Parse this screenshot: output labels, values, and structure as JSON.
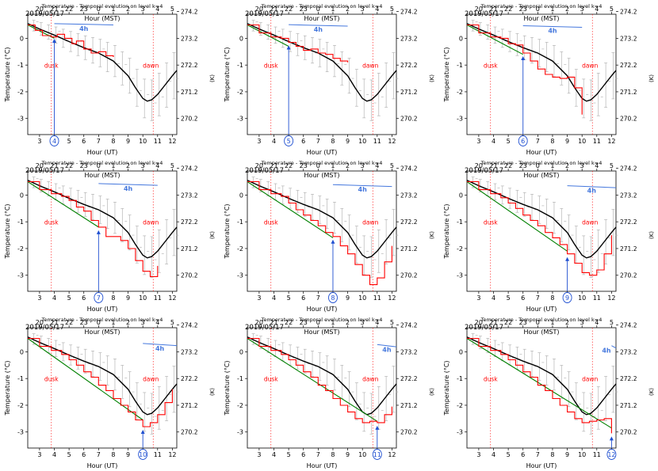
{
  "figure": {
    "panel_title": "Temperature - Temporal evolution on level k=4",
    "date_label": "2019/05/17",
    "xlabel_bottom": "Hour (UT)",
    "xlabel_top": "Hour (MST)",
    "ylabel_left": "Temperature (°C)",
    "ylabel_right": "(K)",
    "dusk_label": "dusk",
    "dawn_label": "dawn",
    "window_label": "4h",
    "colors": {
      "mean_line": "#000000",
      "observed_line": "#ff0000",
      "model_line": "#008000",
      "marker": "#1f4fd1",
      "window_bar": "#4477dd",
      "annotation": "#ff0000",
      "errorbar": "#aaaaaa"
    }
  },
  "chart_data": {
    "type": "line",
    "title": "Temperature - Temporal evolution on level k=4",
    "xlabel": "Hour (UT)",
    "ylabel": "Temperature (°C)",
    "secondary_xlabel": "Hour (MST)",
    "secondary_ylabel": "(K)",
    "xlim": [
      2.2,
      12.3
    ],
    "ylim": [
      -3.6,
      0.9
    ],
    "x_ticks": [
      "3",
      "4",
      "5",
      "6",
      "7",
      "8",
      "9",
      "10",
      "11",
      "12"
    ],
    "y_ticks": [
      "-3",
      "-2",
      "-1",
      "0"
    ],
    "top_ticks_x": [
      3,
      4,
      5,
      6,
      7,
      8,
      9,
      10,
      11,
      12
    ],
    "top_ticks": [
      "20",
      "21",
      "22",
      "23",
      "0",
      "1",
      "2",
      "3",
      "4",
      "5"
    ],
    "right_ticks": [
      "274.2",
      "273.2",
      "272.2",
      "271.2",
      "270.2"
    ],
    "right_ticks_y": [
      1,
      0,
      -1,
      -2,
      -3
    ],
    "dusk_x": 3.8,
    "dawn_x": 10.7,
    "mean_curve": {
      "x": [
        2.2,
        3,
        4,
        5,
        6,
        7,
        8,
        9,
        9.5,
        10,
        10.3,
        10.6,
        11,
        11.5,
        12,
        12.3
      ],
      "y": [
        0.55,
        0.35,
        0.12,
        -0.12,
        -0.35,
        -0.55,
        -0.85,
        -1.4,
        -1.85,
        -2.25,
        -2.35,
        -2.3,
        -2.1,
        -1.75,
        -1.4,
        -1.2
      ]
    },
    "errorbars_x": [
      2.5,
      3,
      3.5,
      4,
      4.5,
      5,
      5.5,
      6,
      6.5,
      7,
      7.5,
      8,
      8.5,
      9,
      9.5,
      10,
      10.5,
      11,
      11.5,
      12
    ],
    "panels": [
      {
        "marker_label": "4",
        "marker_x": 4,
        "window_start": 4,
        "window_end": 8,
        "red_x": [
          2.2,
          2.7,
          3.2,
          3.8,
          4.2,
          4.7,
          5.2,
          5.5,
          6,
          6.5,
          7,
          7.5,
          8
        ],
        "red_y": [
          0.5,
          0.3,
          0.1,
          0.05,
          0.15,
          0.0,
          -0.2,
          -0.1,
          -0.4,
          -0.55,
          -0.5,
          -0.65,
          -0.7
        ],
        "green_x": [
          2.2,
          4
        ],
        "green_y": [
          0.5,
          0.0
        ]
      },
      {
        "marker_label": "5",
        "marker_x": 5,
        "window_start": 5,
        "window_end": 9,
        "red_x": [
          2.2,
          3,
          3.8,
          4.5,
          5,
          5.5,
          6,
          6.5,
          7,
          7.5,
          8,
          8.5,
          9
        ],
        "red_y": [
          0.5,
          0.2,
          0.05,
          0.0,
          -0.15,
          -0.3,
          -0.45,
          -0.4,
          -0.55,
          -0.6,
          -0.75,
          -0.85,
          -0.9
        ],
        "green_x": [
          2.2,
          5
        ],
        "green_y": [
          0.5,
          -0.3
        ]
      },
      {
        "marker_label": "6",
        "marker_x": 6,
        "window_start": 6,
        "window_end": 10,
        "red_x": [
          2.2,
          3,
          3.8,
          4.5,
          5,
          5.5,
          6,
          6.5,
          7,
          7.5,
          8,
          8.5,
          9,
          9.5,
          10
        ],
        "red_y": [
          0.5,
          0.2,
          0.05,
          0.0,
          -0.2,
          -0.25,
          -0.55,
          -0.85,
          -1.15,
          -1.35,
          -1.45,
          -1.5,
          -1.45,
          -1.85,
          -2.85
        ],
        "green_x": [
          2.2,
          6
        ],
        "green_y": [
          0.5,
          -0.6
        ]
      },
      {
        "marker_label": "7",
        "marker_x": 7,
        "window_start": 7,
        "window_end": 11,
        "red_x": [
          2.2,
          3,
          3.8,
          4.5,
          5,
          5.5,
          6,
          6.5,
          7,
          7.5,
          8,
          8.5,
          9,
          9.5,
          10,
          10.5,
          11
        ],
        "red_y": [
          0.5,
          0.2,
          0.05,
          -0.05,
          -0.2,
          -0.45,
          -0.6,
          -0.95,
          -1.2,
          -1.55,
          -1.55,
          -1.7,
          -2.0,
          -2.45,
          -2.85,
          -3.05,
          -2.65
        ],
        "green_x": [
          2.2,
          7
        ],
        "green_y": [
          0.5,
          -1.2
        ]
      },
      {
        "marker_label": "8",
        "marker_x": 8,
        "window_start": 8,
        "window_end": 12,
        "red_x": [
          2.2,
          3,
          3.8,
          4.5,
          5,
          5.5,
          6,
          6.5,
          7,
          7.5,
          8,
          8.5,
          9,
          9.5,
          10,
          10.5,
          11,
          11.5,
          12
        ],
        "red_y": [
          0.5,
          0.2,
          0.05,
          -0.05,
          -0.3,
          -0.55,
          -0.75,
          -0.95,
          -1.15,
          -1.4,
          -1.55,
          -1.9,
          -2.2,
          -2.6,
          -3.0,
          -3.35,
          -3.1,
          -2.5,
          -1.9
        ],
        "green_x": [
          2.2,
          8
        ],
        "green_y": [
          0.5,
          -1.6
        ]
      },
      {
        "marker_label": "9",
        "marker_x": 9,
        "window_start": 9,
        "window_end": 12.3,
        "red_x": [
          2.2,
          3,
          3.8,
          4.5,
          5,
          5.5,
          6,
          6.5,
          7,
          7.5,
          8,
          8.5,
          9,
          9.5,
          10,
          10.5,
          11,
          11.5,
          12
        ],
        "red_y": [
          0.5,
          0.2,
          0.05,
          -0.1,
          -0.3,
          -0.5,
          -0.75,
          -0.95,
          -1.15,
          -1.4,
          -1.6,
          -1.85,
          -2.2,
          -2.55,
          -2.9,
          -3.0,
          -2.8,
          -2.2,
          -1.5
        ],
        "green_x": [
          2.2,
          9
        ],
        "green_y": [
          0.5,
          -2.1
        ]
      },
      {
        "marker_label": "10",
        "marker_x": 10,
        "window_start": 10,
        "window_end": 12.3,
        "red_x": [
          2.2,
          3,
          3.8,
          4.5,
          5,
          5.5,
          6,
          6.5,
          7,
          7.5,
          8,
          8.5,
          9,
          9.5,
          10,
          10.5,
          11,
          11.5,
          12
        ],
        "red_y": [
          0.5,
          0.2,
          0.05,
          -0.1,
          -0.3,
          -0.5,
          -0.75,
          -0.95,
          -1.25,
          -1.45,
          -1.75,
          -2.0,
          -2.25,
          -2.55,
          -2.8,
          -2.65,
          -2.35,
          -1.9,
          -1.4
        ],
        "green_x": [
          2.2,
          10
        ],
        "green_y": [
          0.5,
          -2.55
        ]
      },
      {
        "marker_label": "11",
        "marker_x": 11,
        "window_start": 11,
        "window_end": 12.3,
        "red_x": [
          2.2,
          3,
          3.8,
          4.5,
          5,
          5.5,
          6,
          6.5,
          7,
          7.5,
          8,
          8.5,
          9,
          9.5,
          10,
          10.5,
          11,
          11.5,
          12
        ],
        "red_y": [
          0.5,
          0.2,
          0.05,
          -0.1,
          -0.3,
          -0.5,
          -0.75,
          -0.95,
          -1.25,
          -1.45,
          -1.75,
          -2.0,
          -2.25,
          -2.5,
          -2.65,
          -2.6,
          -2.65,
          -2.35,
          -2.05
        ],
        "green_x": [
          2.2,
          11
        ],
        "green_y": [
          0.5,
          -2.6
        ]
      },
      {
        "marker_label": "12",
        "marker_x": 12,
        "window_start": 12,
        "window_end": 12.3,
        "red_x": [
          2.2,
          3,
          3.8,
          4.5,
          5,
          5.5,
          6,
          6.5,
          7,
          7.5,
          8,
          8.5,
          9,
          9.5,
          10,
          10.5,
          11,
          11.5,
          12
        ],
        "red_y": [
          0.5,
          0.2,
          0.05,
          -0.1,
          -0.3,
          -0.5,
          -0.75,
          -0.95,
          -1.25,
          -1.45,
          -1.75,
          -2.0,
          -2.25,
          -2.5,
          -2.65,
          -2.6,
          -2.55,
          -2.5,
          -3.05
        ],
        "green_x": [
          2.2,
          12
        ],
        "green_y": [
          0.5,
          -2.85
        ]
      }
    ]
  }
}
